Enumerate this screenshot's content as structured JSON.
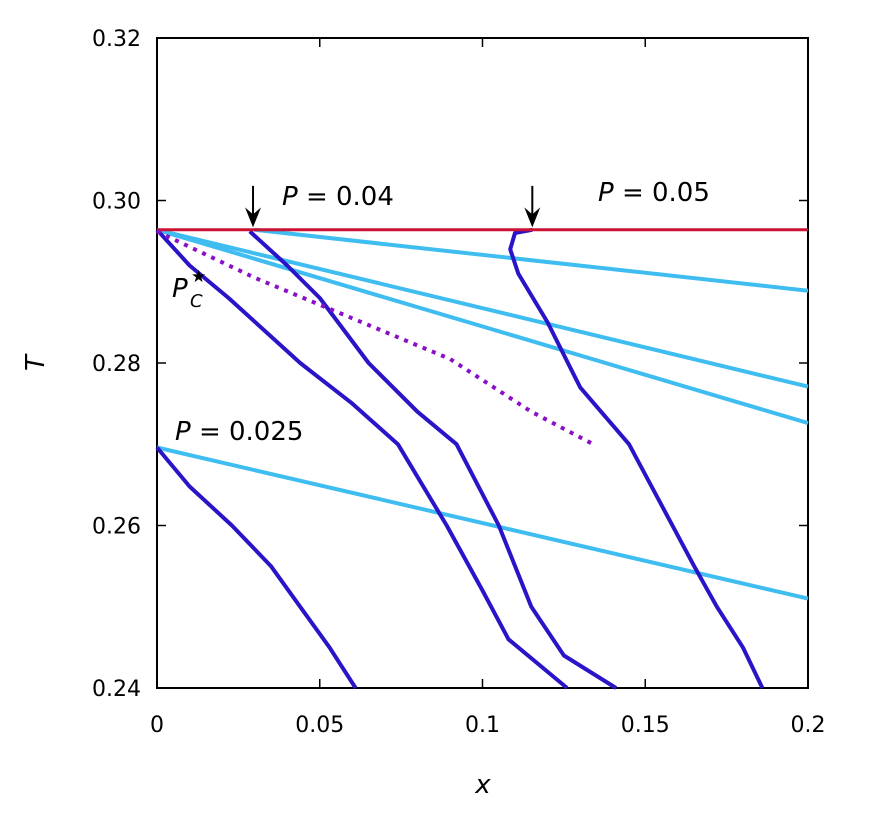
{
  "chart_data": {
    "type": "line",
    "xlabel": "x",
    "ylabel": "T",
    "xlim": [
      0,
      0.2
    ],
    "ylim": [
      0.24,
      0.32
    ],
    "x_ticks": [
      "0",
      "0.05",
      "0.1",
      "0.15",
      "0.2"
    ],
    "y_ticks": [
      "0.24",
      "0.26",
      "0.28",
      "0.30",
      "0.32"
    ],
    "grid": false,
    "colors": {
      "light_curve": "#3fbdf0",
      "dark_curve": "#2a14c8",
      "critical_line": "#cc1133",
      "critical_locus": "#8a10c8"
    },
    "series": [
      {
        "style": "light",
        "points": [
          [
            0,
            0.2696
          ],
          [
            0.2,
            0.251
          ]
        ]
      },
      {
        "style": "dark",
        "points": [
          [
            0,
            0.2696
          ],
          [
            0.01,
            0.2648
          ],
          [
            0.023,
            0.26
          ],
          [
            0.035,
            0.255
          ],
          [
            0.044,
            0.25
          ],
          [
            0.053,
            0.245
          ],
          [
            0.061,
            0.24
          ]
        ]
      },
      {
        "style": "light",
        "points": [
          [
            0,
            0.2964
          ],
          [
            0.2,
            0.2726
          ]
        ]
      },
      {
        "style": "light",
        "points": [
          [
            0,
            0.2964
          ],
          [
            0.2,
            0.2771
          ]
        ]
      },
      {
        "style": "dark",
        "points": [
          [
            0,
            0.2964
          ],
          [
            0.01,
            0.292
          ],
          [
            0.022,
            0.288
          ],
          [
            0.044,
            0.28
          ],
          [
            0.06,
            0.275
          ],
          [
            0.074,
            0.27
          ],
          [
            0.089,
            0.26
          ],
          [
            0.1,
            0.252
          ],
          [
            0.108,
            0.246
          ],
          [
            0.126,
            0.24
          ]
        ]
      },
      {
        "style": "light",
        "points": [
          [
            0.03,
            0.2964
          ],
          [
            0.2,
            0.2889
          ]
        ]
      },
      {
        "style": "dark",
        "points": [
          [
            0.0285,
            0.2962
          ],
          [
            0.04,
            0.292
          ],
          [
            0.05,
            0.288
          ],
          [
            0.065,
            0.28
          ],
          [
            0.08,
            0.274
          ],
          [
            0.092,
            0.27
          ],
          [
            0.105,
            0.26
          ],
          [
            0.115,
            0.25
          ],
          [
            0.125,
            0.244
          ],
          [
            0.141,
            0.24
          ]
        ]
      },
      {
        "style": "dark",
        "points": [
          [
            0.1153,
            0.2964
          ],
          [
            0.11,
            0.296
          ],
          [
            0.1085,
            0.294
          ],
          [
            0.111,
            0.291
          ],
          [
            0.12,
            0.285
          ],
          [
            0.13,
            0.277
          ],
          [
            0.145,
            0.27
          ],
          [
            0.165,
            0.255
          ],
          [
            0.172,
            0.25
          ],
          [
            0.18,
            0.245
          ],
          [
            0.186,
            0.24
          ]
        ]
      },
      {
        "style": "critical_line",
        "points": [
          [
            0,
            0.2964
          ],
          [
            0.2,
            0.2964
          ]
        ]
      },
      {
        "style": "critical_locus",
        "points": [
          [
            0,
            0.2962
          ],
          [
            0.03,
            0.2905
          ],
          [
            0.06,
            0.2855
          ],
          [
            0.09,
            0.2805
          ],
          [
            0.115,
            0.274
          ],
          [
            0.134,
            0.27
          ]
        ]
      }
    ],
    "annotations": {
      "p004": {
        "pre": "P",
        "rest": " = 0.04"
      },
      "p005": {
        "pre": "P",
        "rest": " = 0.05"
      },
      "p0025": {
        "pre": "P",
        "rest": " = 0.025"
      },
      "pc": {
        "main": "P",
        "sup": "★",
        "sub": "C"
      }
    },
    "arrows": [
      {
        "x": 0.0295,
        "y_from": 0.3018,
        "y_to": 0.2967
      },
      {
        "x": 0.1153,
        "y_from": 0.3018,
        "y_to": 0.2967
      }
    ]
  }
}
